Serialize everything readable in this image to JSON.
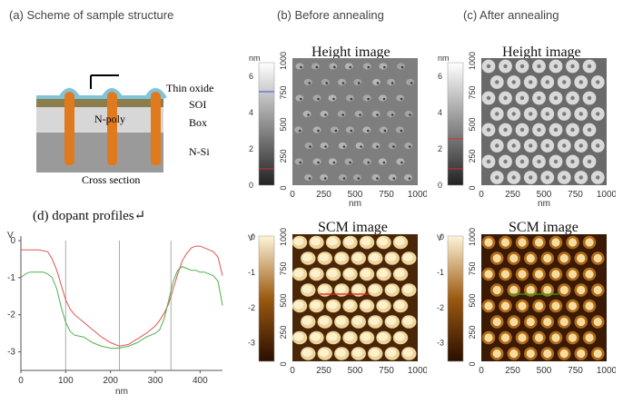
{
  "captions": {
    "a": "(a) Scheme of sample structure",
    "b": "(b) Before annealing",
    "c": "(c) After annealing",
    "d": "(d) dopant profiles↵"
  },
  "scheme": {
    "labels": {
      "thin_oxide": "Thin oxide",
      "soi": "SOI",
      "box": "Box",
      "npoly": "N-poly",
      "nsi": "N-Si",
      "cross_section": "Cross section"
    },
    "colors": {
      "oxide": "#7fc3dc",
      "soi": "#8c7e4c",
      "box": "#d7d7d7",
      "nsi": "#9a9a9a",
      "pillar": "#e07a1f"
    }
  },
  "images": {
    "height_title": "Height image",
    "scm_title": "SCM image",
    "axis_ticks": [
      "0",
      "250",
      "500",
      "750",
      "1000"
    ],
    "axis_unit": "nm",
    "height_scale": {
      "unit": "nm",
      "ticks": [
        "0",
        "2",
        "4",
        "6"
      ]
    },
    "scm_scale": {
      "unit": "V",
      "ticks": [
        "0",
        "-1",
        "-2",
        "-3"
      ]
    }
  },
  "chart_data": {
    "type": "line",
    "xlabel": "nm",
    "ylabel": "V",
    "xlim": [
      0,
      450
    ],
    "ylim": [
      -3.5,
      0
    ],
    "xticks": [
      "0",
      "100",
      "200",
      "300",
      "400"
    ],
    "yticks": [
      "0",
      "-1",
      "-2",
      "-3"
    ],
    "vlines": [
      100,
      220,
      335
    ],
    "series": [
      {
        "color": "#e05555",
        "x": [
          0,
          20,
          40,
          60,
          70,
          80,
          90,
          100,
          110,
          120,
          140,
          160,
          180,
          200,
          220,
          240,
          260,
          280,
          300,
          310,
          320,
          330,
          340,
          350,
          360,
          370,
          380,
          390,
          400,
          410,
          420,
          430,
          440,
          450
        ],
        "y": [
          -0.25,
          -0.25,
          -0.25,
          -0.3,
          -0.5,
          -0.8,
          -1.2,
          -1.6,
          -1.85,
          -2.0,
          -2.2,
          -2.4,
          -2.6,
          -2.75,
          -2.85,
          -2.8,
          -2.65,
          -2.5,
          -2.3,
          -2.15,
          -1.95,
          -1.7,
          -1.3,
          -0.9,
          -0.55,
          -0.35,
          -0.2,
          -0.15,
          -0.15,
          -0.2,
          -0.25,
          -0.3,
          -0.45,
          -0.95
        ]
      },
      {
        "color": "#50b050",
        "x": [
          0,
          10,
          20,
          30,
          40,
          50,
          60,
          70,
          80,
          90,
          100,
          110,
          120,
          140,
          160,
          180,
          200,
          220,
          240,
          260,
          280,
          300,
          310,
          320,
          330,
          340,
          350,
          360,
          370,
          380,
          390,
          400,
          410,
          420,
          430,
          440,
          450
        ],
        "y": [
          -1.0,
          -0.9,
          -0.85,
          -0.85,
          -0.85,
          -0.85,
          -0.9,
          -1.0,
          -1.3,
          -1.8,
          -2.2,
          -2.45,
          -2.55,
          -2.6,
          -2.75,
          -2.85,
          -2.9,
          -2.9,
          -2.85,
          -2.75,
          -2.6,
          -2.5,
          -2.4,
          -2.1,
          -1.6,
          -1.1,
          -0.8,
          -0.7,
          -0.75,
          -0.8,
          -0.8,
          -0.85,
          -0.85,
          -0.9,
          -0.95,
          -1.1,
          -1.75
        ]
      }
    ]
  }
}
